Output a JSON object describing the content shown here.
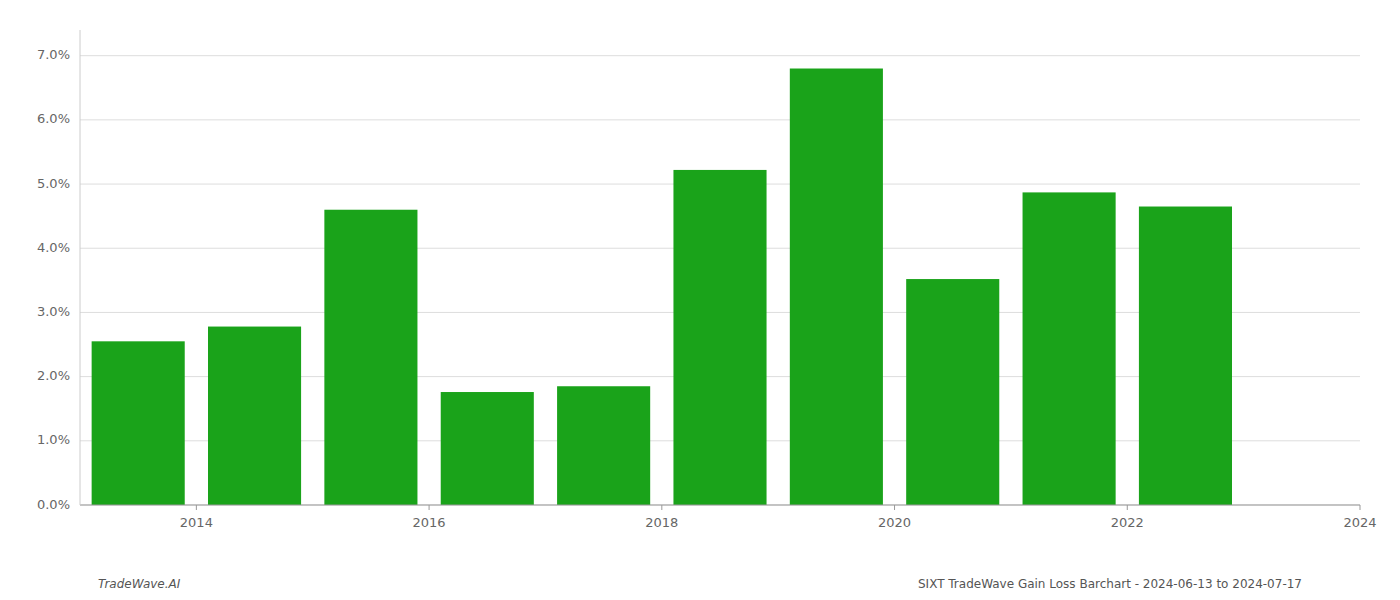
{
  "chart_data": {
    "type": "bar",
    "x": [
      2014,
      2015,
      2016,
      2017,
      2018,
      2019,
      2020,
      2021,
      2022,
      2023
    ],
    "values": [
      0.0255,
      0.0278,
      0.046,
      0.0176,
      0.0185,
      0.0522,
      0.068,
      0.0352,
      0.0487,
      0.0465
    ],
    "color": "#1aa31a",
    "xlim": [
      2013.5,
      2024.5
    ],
    "xticks": [
      {
        "value": 2014.5,
        "label": "2014"
      },
      {
        "value": 2016.5,
        "label": "2016"
      },
      {
        "value": 2018.5,
        "label": "2018"
      },
      {
        "value": 2020.5,
        "label": "2020"
      },
      {
        "value": 2022.5,
        "label": "2022"
      },
      {
        "value": 2024.5,
        "label": "2024"
      }
    ],
    "ylim": [
      0.0,
      0.074
    ],
    "yticks": [
      {
        "value": 0.0,
        "label": "0.0%"
      },
      {
        "value": 0.01,
        "label": "1.0%"
      },
      {
        "value": 0.02,
        "label": "2.0%"
      },
      {
        "value": 0.03,
        "label": "3.0%"
      },
      {
        "value": 0.04,
        "label": "4.0%"
      },
      {
        "value": 0.05,
        "label": "5.0%"
      },
      {
        "value": 0.06,
        "label": "6.0%"
      },
      {
        "value": 0.07,
        "label": "7.0%"
      }
    ],
    "grid": true,
    "annotations": [
      "TradeWave.AI",
      "SIXT TradeWave Gain Loss Barchart - 2024-06-13 to 2024-07-17"
    ]
  }
}
